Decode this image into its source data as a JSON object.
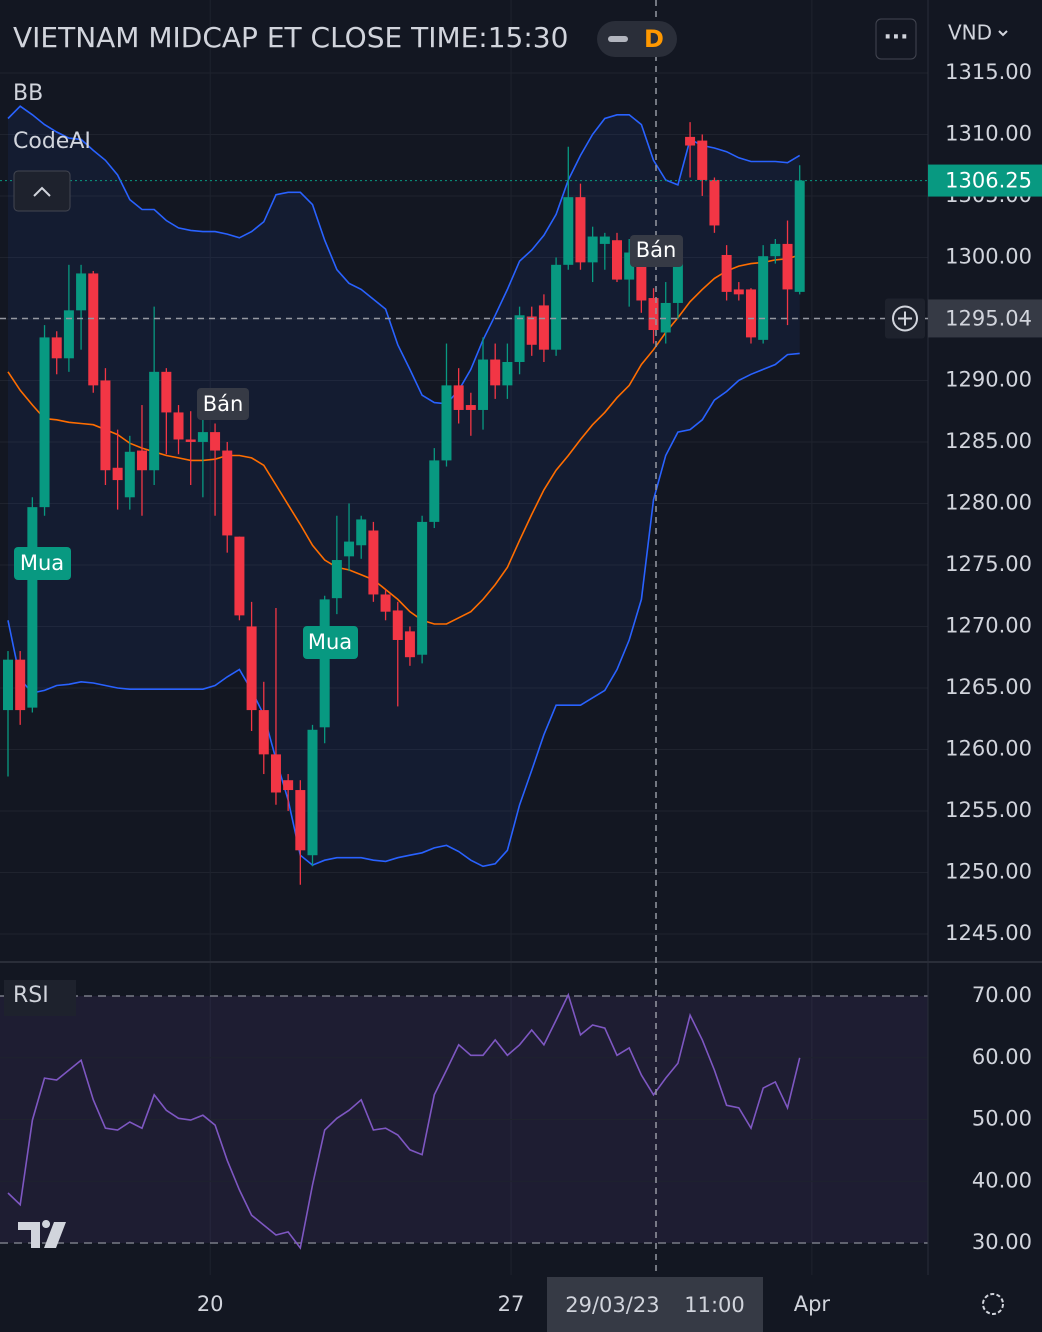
{
  "header": {
    "title": "VIETNAM MIDCAP ET CLOSE TIME:15:30",
    "interval": "D",
    "currency": "VND"
  },
  "indicators": {
    "bb": "BB",
    "code": "CodeAI",
    "rsi": "RSI"
  },
  "labels": {
    "buy": "Mua",
    "sell": "Bán"
  },
  "crosshair": {
    "price": 1295.04,
    "time": "29/03/23 11:00"
  },
  "chart_data": [
    {
      "type": "candlestick",
      "up_color": "#089981",
      "down_color": "#f23645",
      "open": [
        1263.2,
        1267.3,
        1263.4,
        1279.7,
        1293.5,
        1291.8,
        1295.7,
        1298.7,
        1290.0,
        1282.9,
        1280.5,
        1284.3,
        1282.7,
        1290.7,
        1287.4,
        1285.2,
        1285.0,
        1285.8,
        1284.3,
        1277.3,
        1270.0,
        1263.2,
        1259.6,
        1257.5,
        1256.7,
        1251.4,
        1261.8,
        1272.3,
        1275.7,
        1276.6,
        1277.8,
        1272.6,
        1271.3,
        1269.6,
        1267.7,
        1278.5,
        1283.5,
        1289.6,
        1288.0,
        1287.6,
        1291.7,
        1289.6,
        1291.5,
        1295.2,
        1296.1,
        1292.5,
        1299.4,
        1304.9,
        1299.6,
        1301.1,
        1301.4,
        1298.2,
        1300.4,
        1296.7,
        1293.9,
        1296.3,
        1309.8,
        1309.5,
        1306.3,
        1300.2,
        1297.4,
        1297.4,
        1293.3,
        1300.1,
        1301.1,
        1297.2
      ],
      "high": [
        1268.0,
        1268.0,
        1280.5,
        1294.5,
        1294.0,
        1299.4,
        1299.4,
        1298.9,
        1291.0,
        1286.0,
        1285.5,
        1288.0,
        1296.0,
        1291.0,
        1288.0,
        1287.5,
        1287.0,
        1286.5,
        1285.0,
        1277.3,
        1272.0,
        1265.5,
        1271.5,
        1258.0,
        1257.5,
        1262.0,
        1272.5,
        1279.0,
        1280.0,
        1279.0,
        1278.5,
        1273.0,
        1272.0,
        1270.0,
        1279.0,
        1284.5,
        1293.0,
        1291.0,
        1289.0,
        1293.5,
        1293.0,
        1293.0,
        1296.0,
        1296.0,
        1297.0,
        1300.0,
        1309.0,
        1306.0,
        1302.5,
        1302.0,
        1302.0,
        1301.5,
        1301.0,
        1297.5,
        1298.0,
        1300.0,
        1311.0,
        1310.0,
        1306.5,
        1301.0,
        1298.0,
        1297.5,
        1301.0,
        1301.5,
        1303.0,
        1307.5
      ],
      "low": [
        1257.8,
        1262.0,
        1263.0,
        1279.0,
        1290.5,
        1290.7,
        1292.5,
        1289.0,
        1281.5,
        1279.5,
        1279.5,
        1279.0,
        1281.5,
        1284.0,
        1284.0,
        1281.5,
        1280.5,
        1279.0,
        1276.0,
        1270.5,
        1261.5,
        1258.0,
        1255.5,
        1255.0,
        1249.0,
        1250.5,
        1260.5,
        1271.0,
        1274.5,
        1275.5,
        1272.0,
        1270.5,
        1263.5,
        1266.8,
        1267.0,
        1278.0,
        1283.0,
        1286.5,
        1285.5,
        1286.0,
        1288.5,
        1288.5,
        1290.5,
        1292.0,
        1291.5,
        1292.0,
        1299.0,
        1299.0,
        1298.0,
        1299.0,
        1298.0,
        1296.0,
        1295.5,
        1293.0,
        1293.0,
        1295.0,
        1306.5,
        1305.0,
        1302.0,
        1296.5,
        1296.5,
        1293.0,
        1293.0,
        1299.5,
        1294.5,
        1297.0
      ],
      "close": [
        1267.3,
        1263.2,
        1279.7,
        1293.5,
        1291.8,
        1295.7,
        1298.7,
        1289.6,
        1282.7,
        1281.9,
        1284.2,
        1282.7,
        1290.7,
        1287.4,
        1285.2,
        1285.0,
        1285.8,
        1284.3,
        1277.4,
        1270.9,
        1263.2,
        1259.6,
        1256.5,
        1256.7,
        1251.8,
        1261.6,
        1272.2,
        1275.4,
        1276.9,
        1278.7,
        1272.6,
        1271.2,
        1268.9,
        1267.5,
        1278.5,
        1283.5,
        1289.6,
        1287.6,
        1287.6,
        1291.7,
        1289.6,
        1291.5,
        1295.3,
        1292.9,
        1292.5,
        1299.4,
        1304.9,
        1299.6,
        1301.7,
        1301.7,
        1298.2,
        1300.4,
        1296.5,
        1294.1,
        1296.3,
        1299.5,
        1309.1,
        1306.3,
        1302.6,
        1297.2,
        1297.0,
        1293.5,
        1300.1,
        1301.1,
        1297.4,
        1306.25
      ],
      "overlays": [
        {
          "color": "#2962ff",
          "values": [
            1311.3,
            1312.3,
            1311.6,
            1310.8,
            1310.2,
            1309.7,
            1309.6,
            1308.7,
            1307.9,
            1306.7,
            1304.7,
            1303.9,
            1303.9,
            1303.0,
            1302.4,
            1302.2,
            1302.1,
            1302.1,
            1301.9,
            1301.6,
            1302.1,
            1302.9,
            1305.1,
            1305.3,
            1305.3,
            1304.3,
            1301.4,
            1299.0,
            1297.9,
            1297.4,
            1296.6,
            1295.8,
            1292.9,
            1290.9,
            1288.8,
            1288.2,
            1288.1,
            1289.2,
            1290.9,
            1293.3,
            1295.3,
            1297.4,
            1299.7,
            1300.6,
            1301.8,
            1303.5,
            1306.3,
            1308.3,
            1310.0,
            1311.3,
            1311.6,
            1311.6,
            1310.8,
            1307.9,
            1306.3,
            1305.9,
            1309.6,
            1309.1,
            1308.9,
            1308.6,
            1308.1,
            1307.8,
            1307.8,
            1307.8,
            1307.7,
            1308.3
          ]
        },
        {
          "color": "#ff6d00",
          "values": [
            1290.7,
            1289.2,
            1288.0,
            1286.9,
            1286.8,
            1286.6,
            1286.5,
            1286.4,
            1286.0,
            1285.6,
            1284.9,
            1284.5,
            1284.2,
            1283.9,
            1283.7,
            1283.5,
            1283.5,
            1283.6,
            1283.9,
            1283.9,
            1283.7,
            1283.1,
            1281.5,
            1279.9,
            1278.3,
            1276.6,
            1275.4,
            1274.8,
            1274.6,
            1274.2,
            1273.8,
            1273.0,
            1272.2,
            1271.2,
            1270.5,
            1270.2,
            1270.2,
            1270.7,
            1271.2,
            1272.2,
            1273.4,
            1274.8,
            1277.0,
            1279.1,
            1281.1,
            1282.7,
            1283.9,
            1285.2,
            1286.4,
            1287.4,
            1288.6,
            1289.6,
            1291.3,
            1292.5,
            1293.9,
            1295.1,
            1296.4,
            1297.4,
            1298.3,
            1298.9,
            1299.3,
            1299.5,
            1299.6,
            1299.8,
            1299.9,
            1300.2
          ]
        },
        {
          "color": "#2962ff",
          "values": [
            1270.5,
            1265.7,
            1264.6,
            1264.8,
            1265.2,
            1265.3,
            1265.5,
            1265.4,
            1265.2,
            1265.0,
            1264.9,
            1264.9,
            1264.9,
            1264.9,
            1264.9,
            1264.9,
            1264.9,
            1265.2,
            1265.9,
            1266.5,
            1264.8,
            1262.8,
            1259.2,
            1255.9,
            1251.4,
            1250.6,
            1251.0,
            1251.2,
            1251.2,
            1251.2,
            1251.0,
            1250.9,
            1251.2,
            1251.4,
            1251.6,
            1252.0,
            1252.2,
            1251.7,
            1251.0,
            1250.5,
            1250.7,
            1251.8,
            1255.5,
            1258.3,
            1261.2,
            1263.6,
            1263.6,
            1263.6,
            1264.2,
            1264.8,
            1266.5,
            1268.9,
            1272.2,
            1280.3,
            1283.9,
            1285.8,
            1286.0,
            1286.8,
            1288.4,
            1289.1,
            1290.0,
            1290.5,
            1290.9,
            1291.3,
            1292.1,
            1292.2
          ]
        }
      ],
      "ylim": [
        1242.72,
        1320.93
      ],
      "yticks": [
        {
          "value": 1245,
          "label": "1245.00"
        },
        {
          "value": 1250,
          "label": "1250.00"
        },
        {
          "value": 1255,
          "label": "1255.00"
        },
        {
          "value": 1260,
          "label": "1260.00"
        },
        {
          "value": 1265,
          "label": "1265.00"
        },
        {
          "value": 1270,
          "label": "1270.00"
        },
        {
          "value": 1275,
          "label": "1275.00"
        },
        {
          "value": 1280,
          "label": "1280.00"
        },
        {
          "value": 1285,
          "label": "1285.00"
        },
        {
          "value": 1290,
          "label": "1290.00"
        },
        {
          "value": 1295,
          "label": "1295.00"
        },
        {
          "value": 1300,
          "label": "1300.00"
        },
        {
          "value": 1305,
          "label": "1305.00"
        },
        {
          "value": 1310,
          "label": "1310.00"
        },
        {
          "value": 1315,
          "label": "1315.00"
        }
      ],
      "xticks": [
        {
          "value": 16.6,
          "label": "20"
        },
        {
          "value": 41.3,
          "label": "27"
        },
        {
          "value": 66,
          "label": "Apr"
        }
      ],
      "grid": true
    },
    {
      "type": "line",
      "color": "#7e57c2",
      "values": [
        38.1,
        36.2,
        49.9,
        56.7,
        56.4,
        58.0,
        59.6,
        53.2,
        48.6,
        48.3,
        49.6,
        48.6,
        54.0,
        51.5,
        50.2,
        49.9,
        50.7,
        49.1,
        43.4,
        38.6,
        34.5,
        32.9,
        31.3,
        31.8,
        29.2,
        39.4,
        48.3,
        50.2,
        51.5,
        53.2,
        48.3,
        48.6,
        47.5,
        45.1,
        44.3,
        54.0,
        58.0,
        62.1,
        60.4,
        60.4,
        62.9,
        60.4,
        62.1,
        64.5,
        62.1,
        66.1,
        70.2,
        63.7,
        65.3,
        64.8,
        60.4,
        61.6,
        57.2,
        54.0,
        56.7,
        59.1,
        66.9,
        62.9,
        58.0,
        52.3,
        51.9,
        48.6,
        55.1,
        56.1,
        51.9,
        60.0
      ],
      "ylim": [
        24.82,
        75.51
      ],
      "yticks": [
        {
          "value": 30,
          "label": "30.00"
        },
        {
          "value": 40,
          "label": "40.00"
        },
        {
          "value": 50,
          "label": "50.00"
        },
        {
          "value": 60,
          "label": "60.00"
        },
        {
          "value": 70,
          "label": "70.00"
        }
      ],
      "band": [
        30,
        70
      ],
      "grid": true
    }
  ]
}
